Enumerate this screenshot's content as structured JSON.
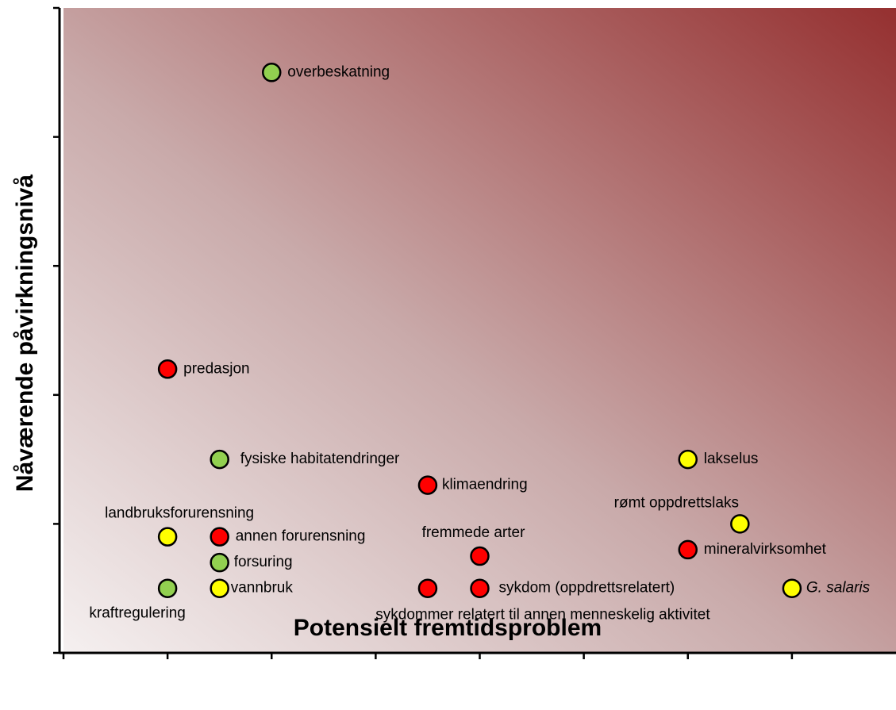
{
  "chart_data": {
    "type": "scatter",
    "xlabel": "Potensielt fremtidsproblem",
    "ylabel": "Nåværende påvirkningsnivå",
    "point_labels": [
      "overbeskatning",
      "predasjon",
      "fysiske habitatendringer",
      "klimaendring",
      "lakselus",
      "rømt oppdrettslaks",
      "mineralvirksomhet",
      "fremmede arter",
      "landbruksforurensning",
      "annen forurensning",
      "forsuring",
      "kraftregulering",
      "vannbruk",
      "sykdommer relatert til annen menneskelig aktivitet",
      "sykdom (oppdrettsrelatert)",
      "G. salaris"
    ],
    "x": [
      2,
      1,
      1.5,
      3.5,
      6,
      6.5,
      6,
      4,
      1,
      1.5,
      1.5,
      1,
      1.5,
      3.5,
      4,
      7
    ],
    "values": [
      4.5,
      2.2,
      1.5,
      1.3,
      1.5,
      1.0,
      0.8,
      0.75,
      0.9,
      0.9,
      0.7,
      0.5,
      0.5,
      0.5,
      0.5,
      0.5
    ],
    "colors": [
      "#92d050",
      "#ff0000",
      "#92d050",
      "#ff0000",
      "#ffff00",
      "#ffff00",
      "#ff0000",
      "#ff0000",
      "#ffff00",
      "#ff0000",
      "#92d050",
      "#92d050",
      "#ffff00",
      "#ff0000",
      "#ff0000",
      "#ffff00"
    ],
    "xlim": [
      0,
      8
    ],
    "xticks": [
      0,
      1,
      2,
      3,
      4,
      5,
      6,
      7
    ],
    "ylim": [
      0,
      5
    ],
    "yticks": [
      0,
      1,
      2,
      3,
      4,
      5
    ],
    "grid": false
  }
}
